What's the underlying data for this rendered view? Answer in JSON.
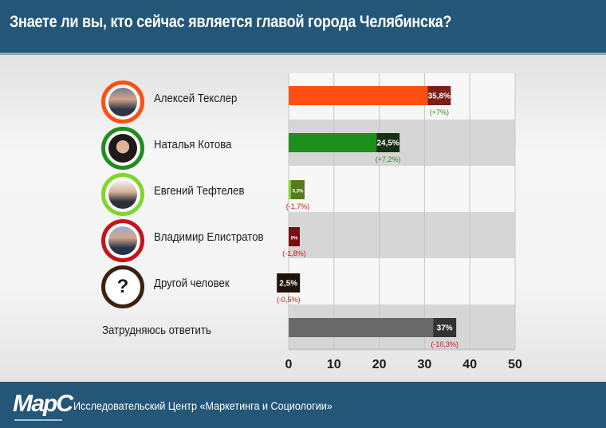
{
  "header": {
    "title": "Знаете ли вы, кто сейчас является главой города Челябинска?"
  },
  "footer": {
    "org": "Исследовательский Центр «Маркетинга и Социологии»",
    "logo_text": "МарС"
  },
  "colors": {
    "band": "#245677",
    "tekslar": "#ff4f12",
    "kotova": "#1e8e1e",
    "teftelev": "#80d62e",
    "elistratov": "#c4131b",
    "other": "#3a2212",
    "dont": "#696969",
    "pos_change": "#2a8a2a",
    "neg_change": "#d0101a"
  },
  "chart_data": {
    "type": "bar",
    "orientation": "horizontal",
    "title": "Знаете ли вы, кто сейчас является главой города Челябинска?",
    "categories": [
      "Алексей Текслер",
      "Наталья Котова",
      "Евгений Тефтелев",
      "Владимир Елистратов",
      "Другой человек",
      "Затрудняюсь ответить"
    ],
    "values": [
      35.8,
      24.5,
      0.3,
      0,
      2.5,
      37
    ],
    "value_labels": [
      "35,8%",
      "24,5%",
      "0,3%",
      "0%",
      "2,5%",
      "37%"
    ],
    "change_labels": [
      "(+7%)",
      "(+7,2%)",
      "(-1,7%)",
      "(-1,8%)",
      "(-0,5%)",
      "(-10,3%)"
    ],
    "changes": [
      7,
      7.2,
      -1.7,
      -1.8,
      -0.5,
      -10.3
    ],
    "x_ticks": [
      "0",
      "10",
      "20",
      "30",
      "40",
      "50"
    ],
    "xlim": [
      0,
      50
    ],
    "grid": true,
    "row_icons": [
      "portrait-icon",
      "portrait-icon",
      "portrait-icon",
      "portrait-icon",
      "question-icon",
      ""
    ],
    "other_icon_text": "?"
  }
}
